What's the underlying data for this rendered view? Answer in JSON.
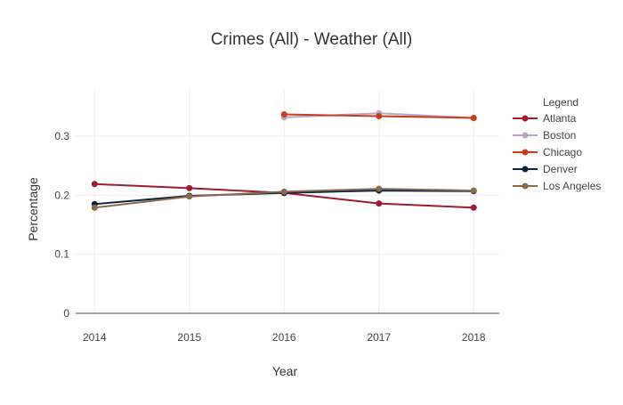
{
  "chart_data": {
    "type": "line",
    "title": "Crimes (All) - Weather (All)",
    "xlabel": "Year",
    "ylabel": "Percentage",
    "x": [
      2014,
      2015,
      2016,
      2017,
      2018
    ],
    "xlim": [
      2013.8,
      2018.27
    ],
    "ylim": [
      0,
      0.38
    ],
    "yticks": [
      0,
      0.1,
      0.2,
      0.3
    ],
    "ytick_labels": [
      "0",
      "0.1",
      "0.2",
      "0.3"
    ],
    "xtick_labels": [
      "2014",
      "2015",
      "2016",
      "2017",
      "2018"
    ],
    "legend_title": "Legend",
    "legend_position": "right",
    "grid": true,
    "series": [
      {
        "name": "Atlanta",
        "color": "#9e1b32",
        "values": [
          0.219,
          0.212,
          0.204,
          0.186,
          0.179
        ]
      },
      {
        "name": "Boston",
        "color": "#b7a6c4",
        "values": [
          null,
          null,
          0.332,
          0.339,
          0.331
        ]
      },
      {
        "name": "Chicago",
        "color": "#c73e1d",
        "values": [
          null,
          null,
          0.337,
          0.334,
          0.331
        ]
      },
      {
        "name": "Denver",
        "color": "#0b2341",
        "values": [
          0.185,
          0.199,
          0.204,
          0.208,
          0.207
        ]
      },
      {
        "name": "Los Angeles",
        "color": "#8a6a4d",
        "values": [
          0.179,
          0.198,
          0.206,
          0.211,
          0.208
        ]
      }
    ]
  }
}
